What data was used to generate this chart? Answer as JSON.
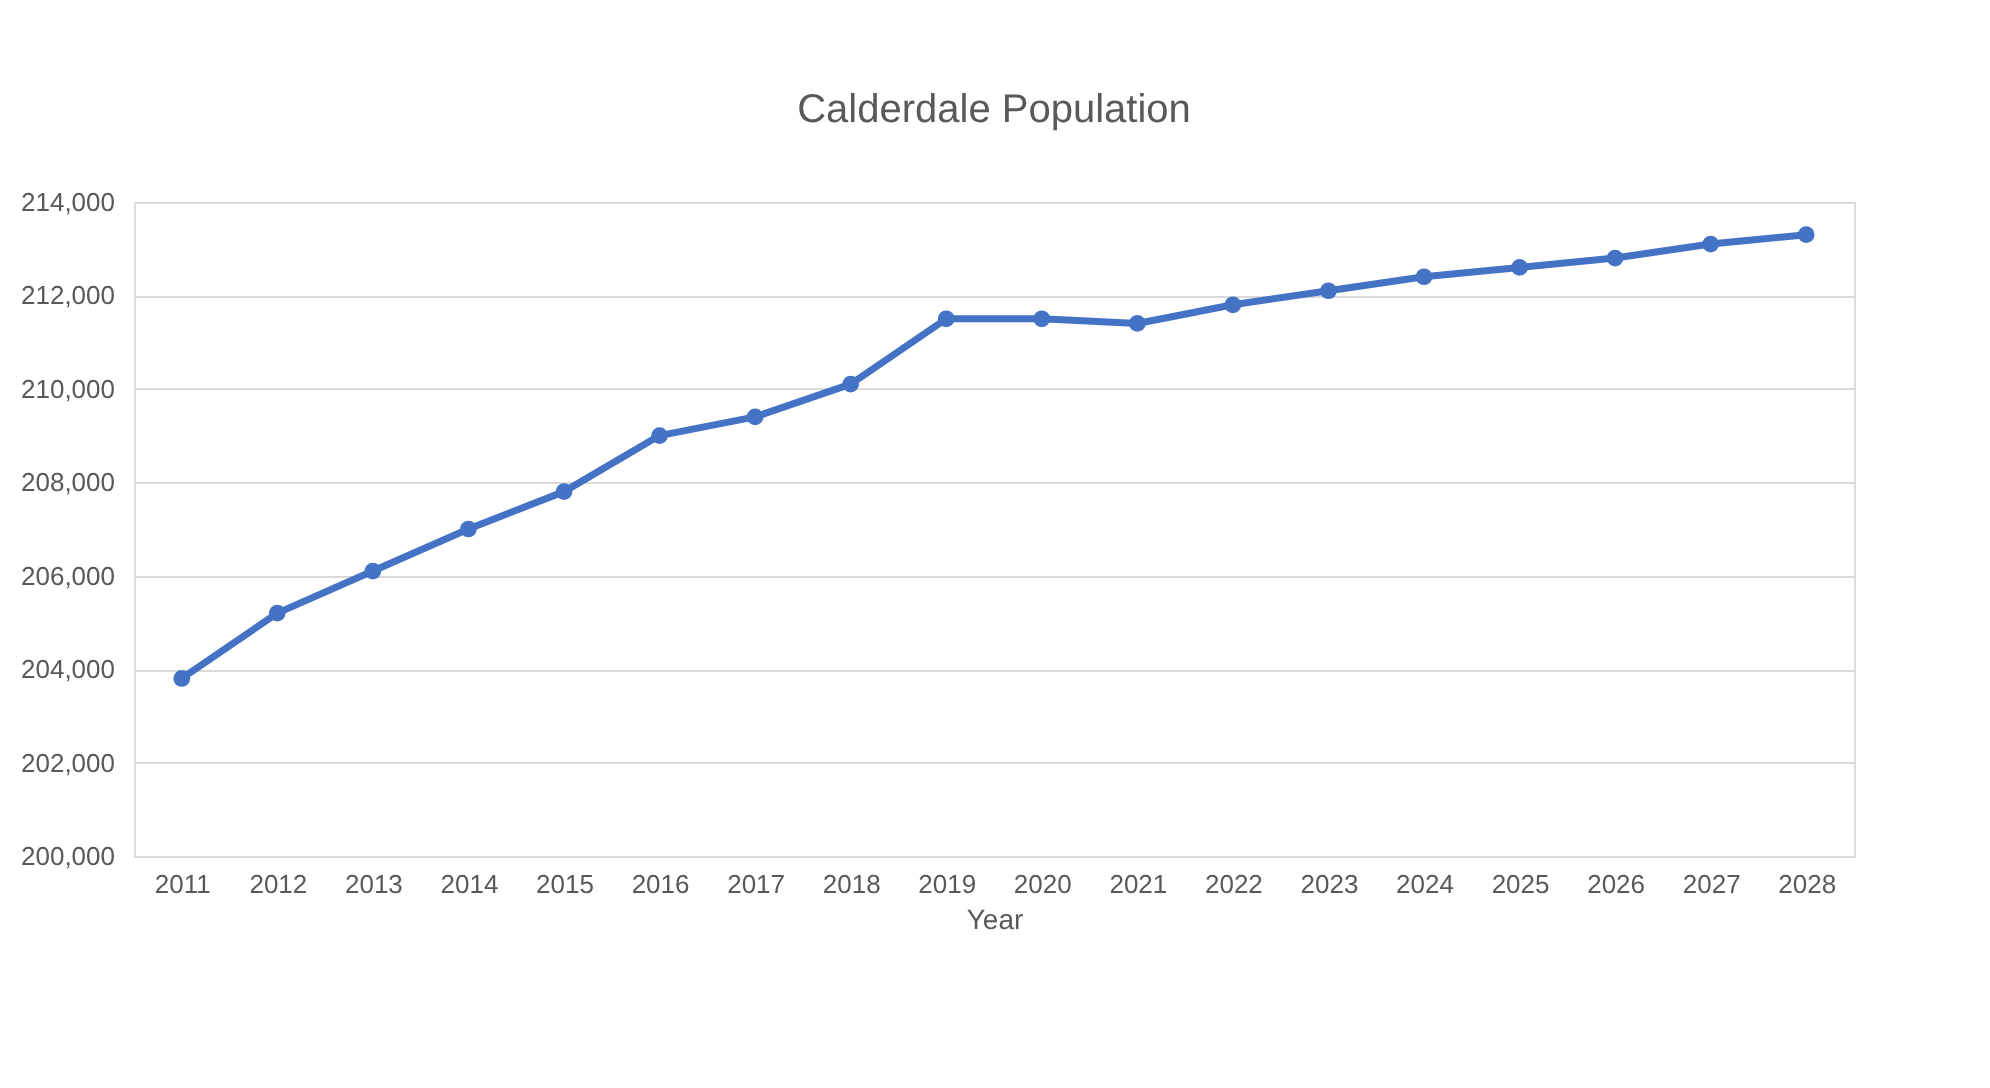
{
  "chart_data": {
    "type": "line",
    "title": "Calderdale Population",
    "xlabel": "Year",
    "categories": [
      "2011",
      "2012",
      "2013",
      "2014",
      "2015",
      "2016",
      "2017",
      "2018",
      "2019",
      "2020",
      "2021",
      "2022",
      "2023",
      "2024",
      "2025",
      "2026",
      "2027",
      "2028"
    ],
    "series": [
      {
        "color": "#4472c4",
        "values": [
          203800,
          205200,
          206100,
          207000,
          207800,
          209000,
          209400,
          210100,
          211500,
          211500,
          211400,
          211800,
          212100,
          212400,
          212600,
          212800,
          213100,
          213300
        ]
      }
    ],
    "ylim": [
      200000,
      214000
    ],
    "yticks": [
      {
        "value": 200000,
        "label": "200,000"
      },
      {
        "value": 202000,
        "label": "202,000"
      },
      {
        "value": 204000,
        "label": "204,000"
      },
      {
        "value": 206000,
        "label": "206,000"
      },
      {
        "value": 208000,
        "label": "208,000"
      },
      {
        "value": 210000,
        "label": "210,000"
      },
      {
        "value": 212000,
        "label": "212,000"
      },
      {
        "value": 214000,
        "label": "214,000"
      }
    ],
    "grid": "y",
    "legend": false,
    "marker": "circle",
    "line_style": "solid"
  }
}
